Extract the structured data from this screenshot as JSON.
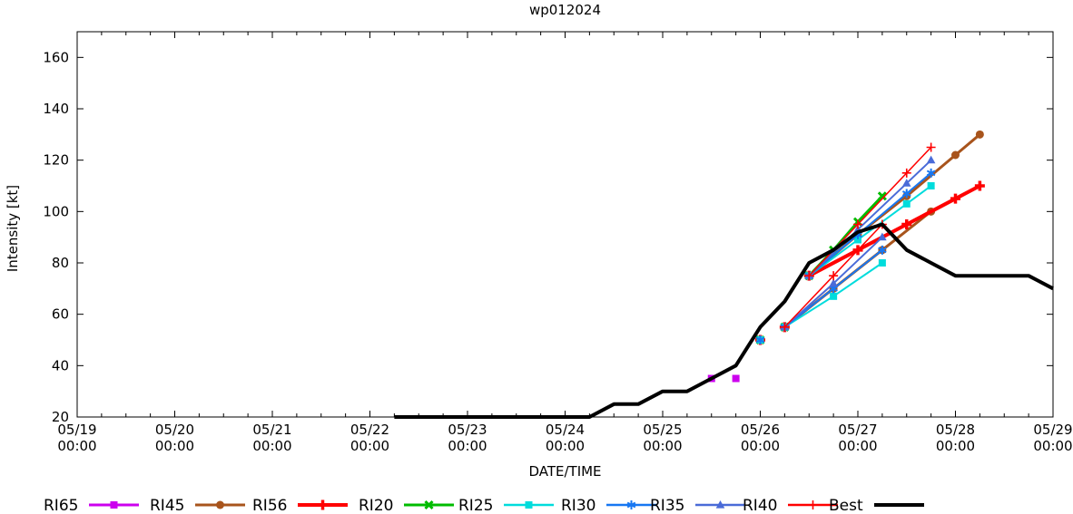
{
  "title": "wp012024",
  "axes": {
    "x_label": "DATE/TIME",
    "y_label": "Intensity [kt]"
  },
  "chart_data": {
    "type": "line",
    "title": "wp012024",
    "xlabel": "DATE/TIME",
    "ylabel": "Intensity [kt]",
    "ylim": [
      20,
      170
    ],
    "y_ticks": [
      20,
      40,
      60,
      80,
      100,
      120,
      140,
      160
    ],
    "x_ticks": [
      {
        "date": "05/19",
        "time": "00:00"
      },
      {
        "date": "05/20",
        "time": "00:00"
      },
      {
        "date": "05/21",
        "time": "00:00"
      },
      {
        "date": "05/22",
        "time": "00:00"
      },
      {
        "date": "05/23",
        "time": "00:00"
      },
      {
        "date": "05/24",
        "time": "00:00"
      },
      {
        "date": "05/25",
        "time": "00:00"
      },
      {
        "date": "05/26",
        "time": "00:00"
      },
      {
        "date": "05/27",
        "time": "00:00"
      },
      {
        "date": "05/28",
        "time": "00:00"
      },
      {
        "date": "05/29",
        "time": "00:00"
      }
    ],
    "x_minor_tick_hours": 6,
    "grid": false,
    "legend_position": "bottom",
    "series": [
      {
        "name": "RI65",
        "color": "#cc00ee",
        "marker": "square",
        "line_width": 3,
        "lines": [],
        "points": [
          [
            "05/25 12:00",
            35
          ],
          [
            "05/25 18:00",
            35
          ]
        ]
      },
      {
        "name": "RI45",
        "color": "#a8541c",
        "marker": "circle",
        "line_width": 3,
        "lines": [
          [
            [
              "05/26 06:00",
              55
            ],
            [
              "05/26 18:00",
              70
            ],
            [
              "05/27 06:00",
              85
            ],
            [
              "05/27 18:00",
              100
            ]
          ],
          [
            [
              "05/26 12:00",
              75
            ],
            [
              "05/27 00:00",
              91
            ],
            [
              "05/27 12:00",
              106
            ],
            [
              "05/28 00:00",
              122
            ],
            [
              "05/28 06:00",
              130
            ]
          ]
        ],
        "points": []
      },
      {
        "name": "RI56",
        "color": "#ff0000",
        "marker": "plus-bold",
        "line_width": 4,
        "lines": [
          [
            [
              "05/26 12:00",
              75
            ],
            [
              "05/27 00:00",
              85
            ],
            [
              "05/27 12:00",
              95
            ],
            [
              "05/28 00:00",
              105
            ],
            [
              "05/28 06:00",
              110
            ]
          ]
        ],
        "points": [
          [
            "05/26 00:00",
            50
          ],
          [
            "05/26 06:00",
            55
          ]
        ]
      },
      {
        "name": "RI20",
        "color": "#00bc00",
        "marker": "x-bold",
        "line_width": 3,
        "lines": [
          [
            [
              "05/26 12:00",
              75
            ],
            [
              "05/26 18:00",
              85
            ],
            [
              "05/27 00:00",
              96
            ],
            [
              "05/27 06:00",
              106
            ]
          ]
        ],
        "points": [
          [
            "05/26 00:00",
            50
          ],
          [
            "05/26 06:00",
            55
          ]
        ]
      },
      {
        "name": "RI25",
        "color": "#00dcdc",
        "marker": "square",
        "line_width": 2,
        "lines": [
          [
            [
              "05/26 06:00",
              55
            ],
            [
              "05/26 18:00",
              67
            ],
            [
              "05/27 06:00",
              80
            ]
          ],
          [
            [
              "05/26 12:00",
              75
            ],
            [
              "05/27 00:00",
              89
            ],
            [
              "05/27 12:00",
              103
            ],
            [
              "05/27 18:00",
              110
            ]
          ]
        ],
        "points": [
          [
            "05/26 00:00",
            50
          ]
        ]
      },
      {
        "name": "RI30",
        "color": "#1777f2",
        "marker": "asterisk",
        "line_width": 2,
        "lines": [
          [
            [
              "05/26 06:00",
              55
            ],
            [
              "05/26 18:00",
              70
            ],
            [
              "05/27 06:00",
              85
            ]
          ],
          [
            [
              "05/26 12:00",
              75
            ],
            [
              "05/27 00:00",
              91
            ],
            [
              "05/27 12:00",
              107
            ],
            [
              "05/27 18:00",
              115
            ]
          ]
        ],
        "points": [
          [
            "05/26 00:00",
            50
          ]
        ]
      },
      {
        "name": "RI35",
        "color": "#4a6bd8",
        "marker": "triangle",
        "line_width": 2,
        "lines": [
          [
            [
              "05/26 06:00",
              55
            ],
            [
              "05/26 18:00",
              72
            ],
            [
              "05/27 06:00",
              90
            ]
          ],
          [
            [
              "05/26 12:00",
              75
            ],
            [
              "05/27 00:00",
              93
            ],
            [
              "05/27 12:00",
              111
            ],
            [
              "05/27 18:00",
              120
            ]
          ]
        ],
        "points": []
      },
      {
        "name": "RI40",
        "color": "#ff0000",
        "marker": "plus",
        "line_width": 1.5,
        "lines": [
          [
            [
              "05/26 06:00",
              55
            ],
            [
              "05/26 18:00",
              75
            ],
            [
              "05/27 06:00",
              95
            ]
          ],
          [
            [
              "05/26 12:00",
              75
            ],
            [
              "05/27 00:00",
              95
            ],
            [
              "05/27 12:00",
              115
            ],
            [
              "05/27 18:00",
              125
            ]
          ]
        ],
        "points": []
      },
      {
        "name": "Best",
        "color": "#000000",
        "marker": "none",
        "line_width": 4,
        "lines": [
          [
            [
              "05/22 06:00",
              20
            ],
            [
              "05/24 06:00",
              20
            ],
            [
              "05/24 12:00",
              25
            ],
            [
              "05/24 18:00",
              25
            ],
            [
              "05/25 00:00",
              30
            ],
            [
              "05/25 06:00",
              30
            ],
            [
              "05/25 12:00",
              35
            ],
            [
              "05/25 18:00",
              40
            ],
            [
              "05/26 00:00",
              55
            ],
            [
              "05/26 06:00",
              65
            ],
            [
              "05/26 12:00",
              80
            ],
            [
              "05/26 18:00",
              85
            ],
            [
              "05/27 00:00",
              92
            ],
            [
              "05/27 06:00",
              95
            ],
            [
              "05/27 12:00",
              85
            ],
            [
              "05/27 18:00",
              80
            ],
            [
              "05/28 00:00",
              75
            ],
            [
              "05/28 18:00",
              75
            ],
            [
              "05/29 00:00",
              70
            ]
          ]
        ],
        "points": []
      }
    ]
  }
}
